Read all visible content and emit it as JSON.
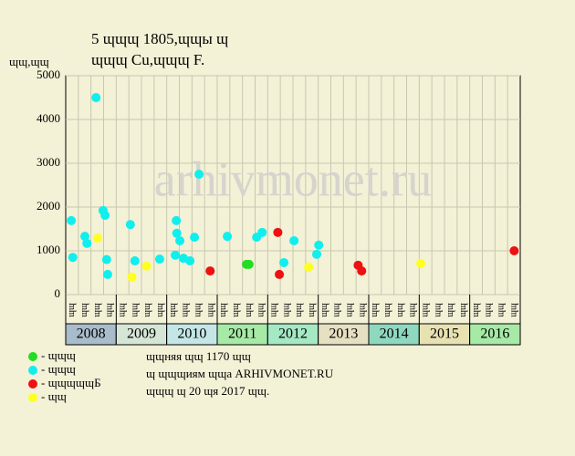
{
  "chart_data": {
    "type": "scatter",
    "title": "5 ɰɰɰ 1805,ɰɰы ɰ",
    "subtitle": "ɰɰɰ Cu,ɰɰɰ F.",
    "y_label": "ɰɰ,ɰɰ",
    "watermark": "arhivmonet.ru",
    "xlim": [
      2008,
      2017
    ],
    "xticks": [
      2008,
      2009,
      2010,
      2011,
      2012,
      2013,
      2014,
      2015,
      2016
    ],
    "year_colors": [
      "#a9bccb",
      "#d6e6d6",
      "#c4e6e6",
      "#a6eaa6",
      "#a4e8c4",
      "#e6e0c2",
      "#8fd8c0",
      "#e8e2b2",
      "#a6eaa6"
    ],
    "quarter_labels": [
      "ɰɰ",
      "ɰɰ",
      "ɰɰ",
      "ɰɰ"
    ],
    "ylim": [
      0,
      5000
    ],
    "yticks": [
      0,
      1000,
      2000,
      3000,
      4000,
      5000
    ],
    "grid": true,
    "series": [
      {
        "name": "- ɰɰɰ",
        "color": "#22dd22",
        "x": [
          2011.58,
          2011.63
        ],
        "values": [
          690,
          690
        ]
      },
      {
        "name": "- ɰɰɰ",
        "color": "#11eeee",
        "x": [
          2008.11,
          2008.14,
          2008.38,
          2008.42,
          2008.6,
          2008.74,
          2008.78,
          2008.81,
          2008.83,
          2009.28,
          2009.37,
          2009.86,
          2010.19,
          2010.2,
          2010.26,
          2010.17,
          2010.33,
          2010.46,
          2010.55,
          2010.64,
          2011.2,
          2011.78,
          2011.89,
          2012.32,
          2012.52,
          2012.97,
          2013.01
        ],
        "values": [
          1690,
          850,
          1330,
          1170,
          4500,
          1920,
          1810,
          800,
          460,
          1600,
          770,
          810,
          1690,
          1400,
          1230,
          900,
          830,
          770,
          1310,
          2750,
          1330,
          1310,
          1420,
          730,
          1230,
          920,
          1130
        ]
      },
      {
        "name": "- ɰɰɰɰɰБ",
        "color": "#ee1111",
        "x": [
          2010.86,
          2012.2,
          2012.23,
          2013.79,
          2013.86,
          2016.88
        ],
        "values": [
          540,
          1420,
          460,
          670,
          540,
          1000
        ]
      },
      {
        "name": "- ɰɰ",
        "color": "#ffff22",
        "x": [
          2008.63,
          2009.31,
          2009.6,
          2012.81,
          2015.03
        ],
        "values": [
          1290,
          400,
          650,
          630,
          710
        ]
      }
    ],
    "notes": [
      "ɰɰняя ɰɰ 1170 ɰɰ",
      "ɰ ɰɰɰиям ɰɰа ARHIVMONET.RU",
      "ɰɰɰ ɰ 20 ɰя 2017 ɰɰ."
    ]
  }
}
